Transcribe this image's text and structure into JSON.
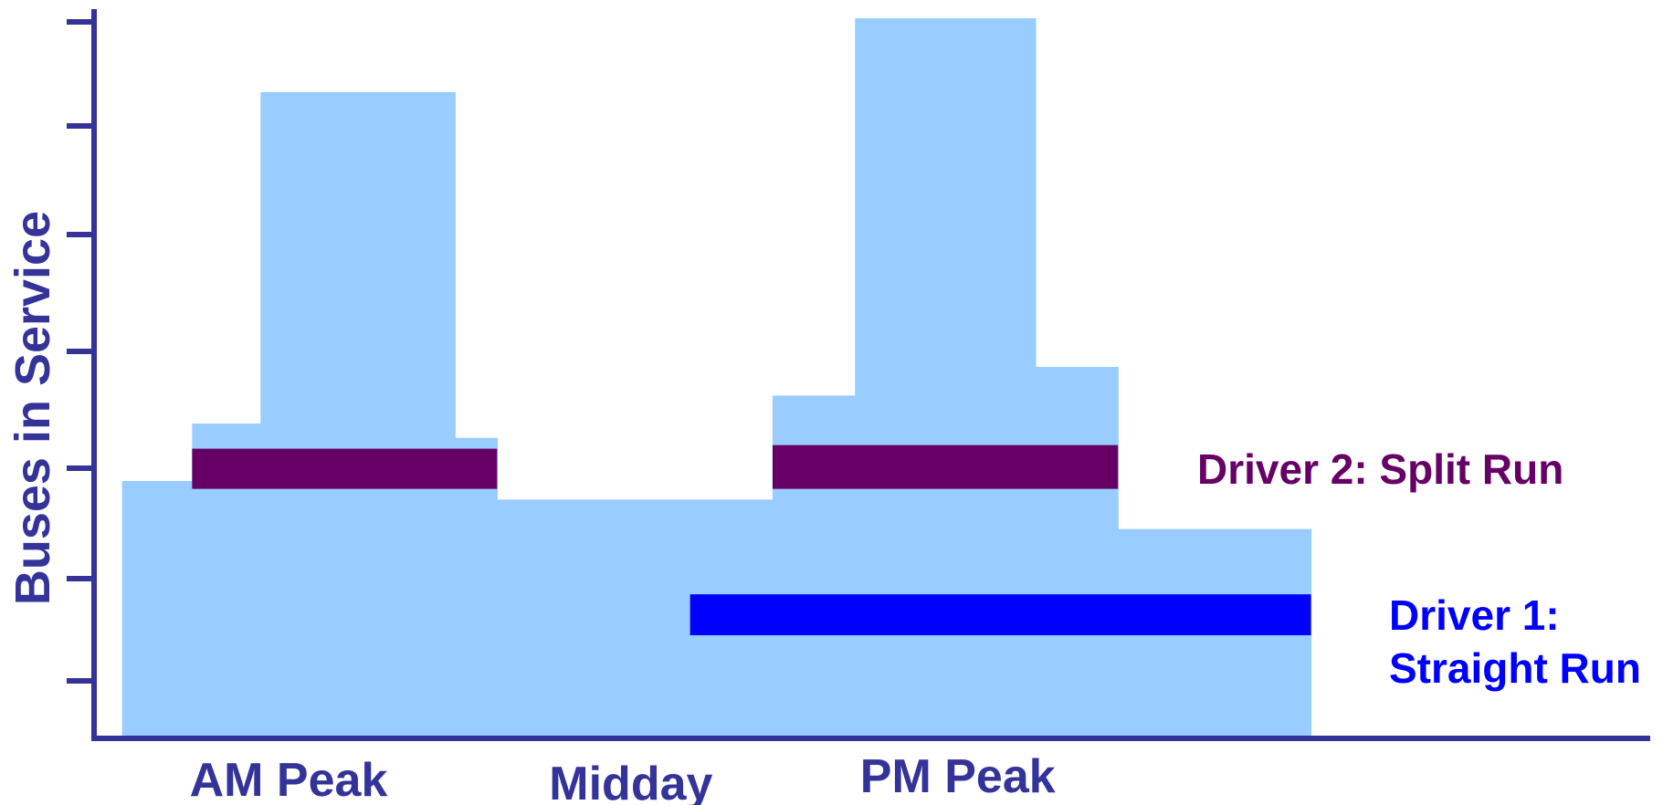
{
  "chart_data": {
    "type": "area",
    "title": "",
    "ylabel": "Buses in Service",
    "xlabel": "",
    "x_range": [
      0,
      100
    ],
    "ylim": [
      0,
      100
    ],
    "grid": false,
    "y_tick_count": 7,
    "categories": [
      {
        "label": "AM Peak",
        "x": 12.5
      },
      {
        "label": "Midday",
        "x": 34.5
      },
      {
        "label": "PM Peak",
        "x": 55.5
      }
    ],
    "service_profile": {
      "name": "",
      "color": "#99ccff",
      "steps": [
        {
          "x0": 1.8,
          "x1": 6.3,
          "y": 35.5
        },
        {
          "x0": 6.3,
          "x1": 10.7,
          "y": 43.5
        },
        {
          "x0": 10.7,
          "x1": 23.2,
          "y": 89.7
        },
        {
          "x0": 23.2,
          "x1": 25.9,
          "y": 41.5
        },
        {
          "x0": 25.9,
          "x1": 43.6,
          "y": 32.9
        },
        {
          "x0": 43.6,
          "x1": 48.9,
          "y": 47.4
        },
        {
          "x0": 48.9,
          "x1": 60.5,
          "y": 100.0
        },
        {
          "x0": 60.5,
          "x1": 65.8,
          "y": 51.4
        },
        {
          "x0": 65.8,
          "x1": 78.2,
          "y": 28.8
        }
      ]
    },
    "runs": [
      {
        "name": "Driver 2: Split Run",
        "label_lines": [
          "Driver 2: Split Run"
        ],
        "color": "#660066",
        "segments": [
          {
            "x0": 6.3,
            "x1": 25.9,
            "y_bottom": 34.4,
            "y_top": 40.0
          },
          {
            "x0": 43.6,
            "x1": 65.8,
            "y_bottom": 34.4,
            "y_top": 40.5
          }
        ]
      },
      {
        "name": "Driver 1: Straight Run",
        "label_lines": [
          "Driver 1:",
          "Straight Run"
        ],
        "color": "#0000ff",
        "segments": [
          {
            "x0": 38.3,
            "x1": 78.2,
            "y_bottom": 14.0,
            "y_top": 19.7
          }
        ]
      }
    ]
  }
}
